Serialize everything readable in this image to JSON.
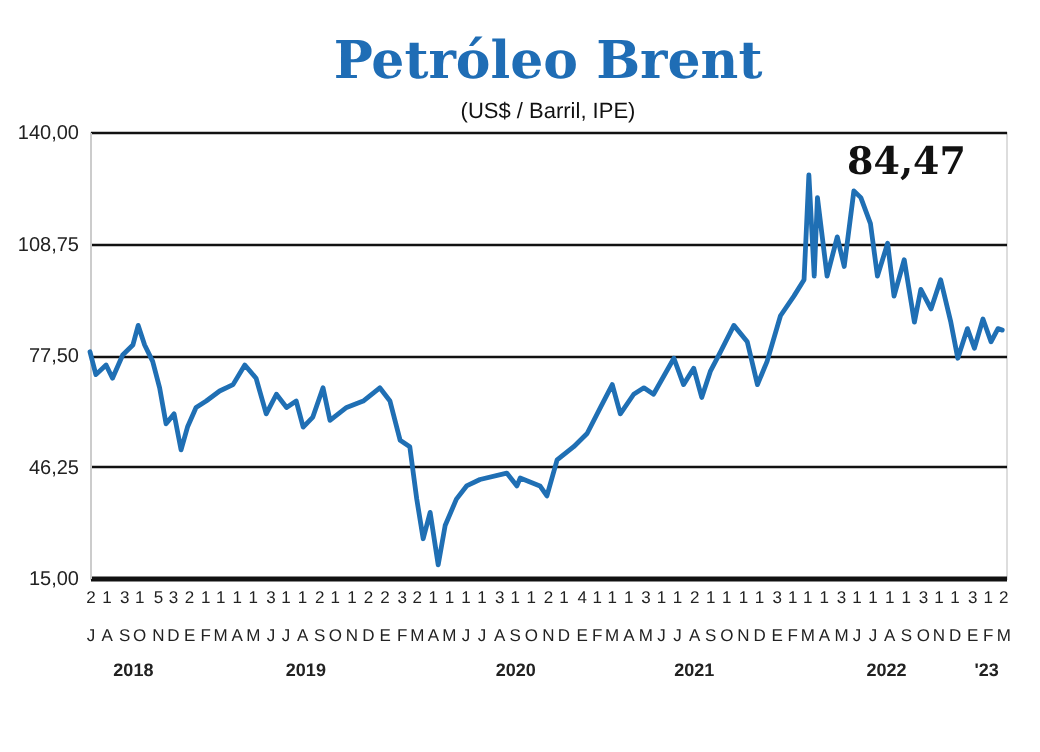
{
  "chart_data": {
    "type": "line",
    "title": "Petróleo Brent",
    "subtitle": "(US$ / Barril, IPE)",
    "annotations": [
      "84,47"
    ],
    "xlim": [
      "2018-07-02",
      "2023-03-08"
    ],
    "xticks": [
      {
        "value": "2018-07-02",
        "label": "2\nJ"
      },
      {
        "value": "2018-08-01",
        "label": "1\nA"
      },
      {
        "value": "2018-09-03",
        "label": "3\nS"
      },
      {
        "value": "2018-10-01",
        "label": "1\nO"
      },
      {
        "value": "2018-11-05",
        "label": "5\nN"
      },
      {
        "value": "2018-12-03",
        "label": "3\nD"
      },
      {
        "value": "2019-01-02",
        "label": "2\nE"
      },
      {
        "value": "2019-02-01",
        "label": "1\nF"
      },
      {
        "value": "2019-03-01",
        "label": "1\nM"
      },
      {
        "value": "2019-04-01",
        "label": "1\nA"
      },
      {
        "value": "2019-05-01",
        "label": "1\nM"
      },
      {
        "value": "2019-06-03",
        "label": "3\nJ"
      },
      {
        "value": "2019-07-01",
        "label": "1\nJ"
      },
      {
        "value": "2019-08-01",
        "label": "1\nA"
      },
      {
        "value": "2019-09-02",
        "label": "2\nS"
      },
      {
        "value": "2019-10-01",
        "label": "1\nO"
      },
      {
        "value": "2019-11-01",
        "label": "1\nN"
      },
      {
        "value": "2019-12-02",
        "label": "2\nD"
      },
      {
        "value": "2020-01-02",
        "label": "2\nE"
      },
      {
        "value": "2020-02-03",
        "label": "3\nF"
      },
      {
        "value": "2020-03-02",
        "label": "2\nM"
      },
      {
        "value": "2020-04-01",
        "label": "1\nA"
      },
      {
        "value": "2020-05-01",
        "label": "1\nM"
      },
      {
        "value": "2020-06-01",
        "label": "1\nJ"
      },
      {
        "value": "2020-07-01",
        "label": "1\nJ"
      },
      {
        "value": "2020-08-03",
        "label": "3\nA"
      },
      {
        "value": "2020-09-01",
        "label": "1\nS"
      },
      {
        "value": "2020-10-01",
        "label": "1\nO"
      },
      {
        "value": "2020-11-02",
        "label": "2\nN"
      },
      {
        "value": "2020-12-01",
        "label": "1\nD"
      },
      {
        "value": "2021-01-04",
        "label": "4\nE"
      },
      {
        "value": "2021-02-01",
        "label": "1\nF"
      },
      {
        "value": "2021-03-01",
        "label": "1\nM"
      },
      {
        "value": "2021-04-01",
        "label": "1\nA"
      },
      {
        "value": "2021-05-03",
        "label": "3\nM"
      },
      {
        "value": "2021-06-01",
        "label": "1\nJ"
      },
      {
        "value": "2021-07-01",
        "label": "1\nJ"
      },
      {
        "value": "2021-08-02",
        "label": "2\nA"
      },
      {
        "value": "2021-09-01",
        "label": "1\nS"
      },
      {
        "value": "2021-10-01",
        "label": "1\nO"
      },
      {
        "value": "2021-11-01",
        "label": "1\nN"
      },
      {
        "value": "2021-12-01",
        "label": "1\nD"
      },
      {
        "value": "2022-01-03",
        "label": "3\nE"
      },
      {
        "value": "2022-02-01",
        "label": "1\nF"
      },
      {
        "value": "2022-03-01",
        "label": "1\nM"
      },
      {
        "value": "2022-04-01",
        "label": "1\nA"
      },
      {
        "value": "2022-05-03",
        "label": "3\nM"
      },
      {
        "value": "2022-06-01",
        "label": "1\nJ"
      },
      {
        "value": "2022-07-01",
        "label": "1\nJ"
      },
      {
        "value": "2022-08-01",
        "label": "1\nA"
      },
      {
        "value": "2022-09-01",
        "label": "1\nS"
      },
      {
        "value": "2022-10-03",
        "label": "3\nO"
      },
      {
        "value": "2022-11-01",
        "label": "1\nN"
      },
      {
        "value": "2022-12-01",
        "label": "1\nD"
      },
      {
        "value": "2023-01-03",
        "label": "3\nE"
      },
      {
        "value": "2023-02-01",
        "label": "1\nF"
      },
      {
        "value": "2023-03-02",
        "label": "2\nM"
      }
    ],
    "x2lim": [
      "2018-07-02",
      "2023-03-08"
    ],
    "x2ticks": [
      {
        "value": "2018-09-21",
        "label": "2018"
      },
      {
        "value": "2019-08-09",
        "label": "2019"
      },
      {
        "value": "2020-09-04",
        "label": "2020"
      },
      {
        "value": "2021-08-03",
        "label": "2021"
      },
      {
        "value": "2022-07-28",
        "label": "2022"
      },
      {
        "value": "2023-01-31",
        "label": "'23"
      }
    ],
    "ylim": [
      15,
      140
    ],
    "yticks": [
      {
        "value": 15,
        "label": "15,00"
      },
      {
        "value": 46.25,
        "label": "46,25"
      },
      {
        "value": 77.5,
        "label": "77,50"
      },
      {
        "value": 108.75,
        "label": "108,75"
      },
      {
        "value": 140,
        "label": "140,00"
      }
    ],
    "grid": "y",
    "legend": false,
    "marker": "none",
    "line_style": "solid",
    "series": [
      {
        "color": "#1f6fb4",
        "x": [
          "2018-07-02",
          "2018-07-13",
          "2018-08-01",
          "2018-08-13",
          "2018-09-01",
          "2018-09-20",
          "2018-09-30",
          "2018-10-12",
          "2018-10-27",
          "2018-11-09",
          "2018-11-21",
          "2018-12-06",
          "2018-12-19",
          "2018-12-31",
          "2019-01-16",
          "2019-02-04",
          "2019-03-01",
          "2019-03-26",
          "2019-04-17",
          "2019-05-08",
          "2019-05-27",
          "2019-06-15",
          "2019-07-04",
          "2019-07-22",
          "2019-08-04",
          "2019-08-22",
          "2019-09-10",
          "2019-09-23",
          "2019-10-24",
          "2019-11-24",
          "2019-12-25",
          "2020-01-13",
          "2020-02-01",
          "2020-02-19",
          "2020-03-03",
          "2020-03-15",
          "2020-03-28",
          "2020-04-12",
          "2020-04-25",
          "2020-05-16",
          "2020-06-04",
          "2020-06-29",
          "2020-08-18",
          "2020-09-06",
          "2020-09-12",
          "2020-10-19",
          "2020-11-01",
          "2020-11-20",
          "2020-12-21",
          "2021-01-15",
          "2021-02-09",
          "2021-03-03",
          "2021-03-18",
          "2021-04-12",
          "2021-05-01",
          "2021-05-19",
          "2021-06-26",
          "2021-07-14",
          "2021-08-02",
          "2021-08-17",
          "2021-09-02",
          "2021-09-21",
          "2021-10-16",
          "2021-11-10",
          "2021-11-29",
          "2021-12-17",
          "2022-01-11",
          "2022-02-05",
          "2022-02-24",
          "2022-03-05",
          "2022-03-15",
          "2022-03-21",
          "2022-04-08",
          "2022-04-27",
          "2022-05-10",
          "2022-05-28",
          "2022-06-10",
          "2022-06-28",
          "2022-07-11",
          "2022-07-30",
          "2022-08-11",
          "2022-08-30",
          "2022-09-18",
          "2022-09-30",
          "2022-10-19",
          "2022-11-06",
          "2022-11-25",
          "2022-12-08",
          "2022-12-26",
          "2023-01-08",
          "2023-01-24",
          "2023-02-08",
          "2023-02-21",
          "2023-03-01"
        ],
        "values": [
          78.4,
          72,
          74.7,
          71,
          77.5,
          80.3,
          85.8,
          80.3,
          75.7,
          68.3,
          58.2,
          61,
          50.9,
          57.3,
          62.8,
          64.6,
          67.4,
          69.2,
          74.7,
          71,
          61,
          66.5,
          62.8,
          64.6,
          57.3,
          60.1,
          68.3,
          59.2,
          62.8,
          64.6,
          68.3,
          64.6,
          53.6,
          51.8,
          37.1,
          26,
          33.4,
          18.7,
          29.7,
          37.1,
          40.8,
          42.6,
          44.4,
          40.8,
          43,
          40.8,
          38,
          48.1,
          51.8,
          55.5,
          62.8,
          69.2,
          61,
          66.5,
          68.3,
          66.5,
          76.6,
          69.2,
          73.8,
          65.6,
          72.9,
          78.4,
          85.8,
          81.2,
          69.2,
          75.7,
          88.5,
          94,
          98.6,
          128,
          99.6,
          121.6,
          99.6,
          110.6,
          102.3,
          123.5,
          121.6,
          114.3,
          99.6,
          108.8,
          94,
          104.2,
          86.7,
          95.9,
          90.4,
          98.6,
          86.7,
          76.6,
          84.9,
          79.4,
          87.6,
          81.2,
          84.9,
          84.47
        ]
      }
    ]
  }
}
